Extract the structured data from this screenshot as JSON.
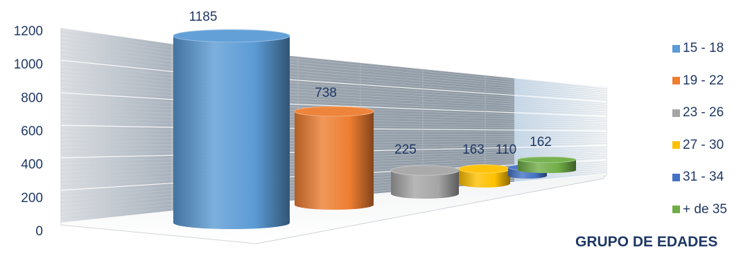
{
  "chart_data": {
    "type": "bar",
    "style": "3d-cylinder",
    "title": "GRUPO DE EDADES",
    "categories": [
      "15 - 18",
      "19 - 22",
      "23 - 26",
      "27 - 30",
      "31 - 34",
      "+ de 35"
    ],
    "values": [
      1185,
      738,
      225,
      163,
      110,
      162
    ],
    "colors": [
      "#5b9bd5",
      "#ed7d31",
      "#a5a5a5",
      "#ffc000",
      "#4472c4",
      "#70ad47"
    ],
    "ylim": [
      0,
      1200
    ],
    "yticks": [
      0,
      200,
      400,
      600,
      800,
      1000,
      1200
    ],
    "grid": true,
    "legend": "right"
  }
}
